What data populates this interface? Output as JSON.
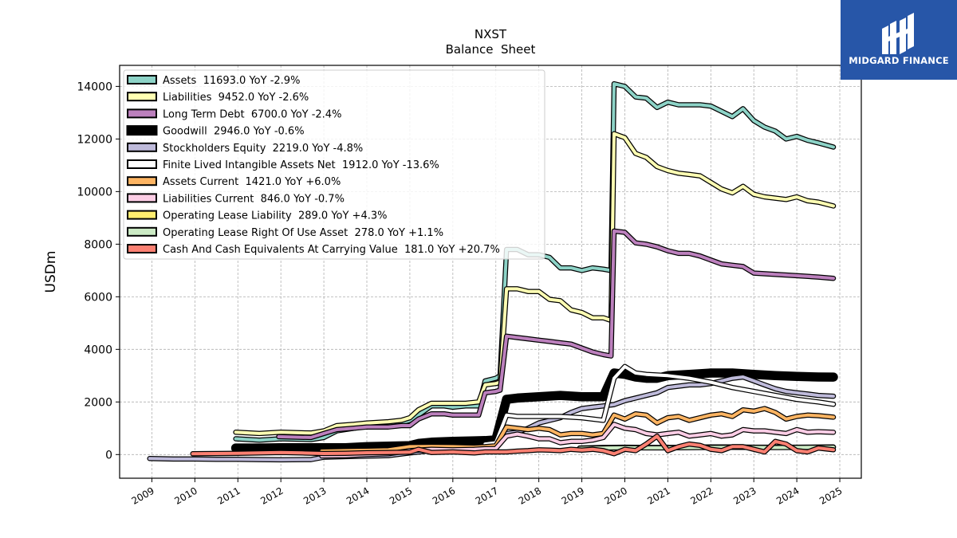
{
  "chart_data": {
    "type": "line",
    "title": "NXST",
    "subtitle": "Balance  Sheet",
    "ylabel": "USDm",
    "xlabel": "",
    "ylim": [
      -900,
      14800
    ],
    "xlim": [
      2008.25,
      2025.5
    ],
    "yticks": [
      0,
      2000,
      4000,
      6000,
      8000,
      10000,
      12000,
      14000
    ],
    "xticks": [
      2009,
      2010,
      2011,
      2012,
      2013,
      2014,
      2015,
      2016,
      2017,
      2018,
      2019,
      2020,
      2021,
      2022,
      2023,
      2024,
      2025
    ],
    "grid": true,
    "legend_position": "top-left",
    "series": [
      {
        "name": "Assets",
        "legend": "Assets  11693.0 YoY -2.9%",
        "color": "#8dd3c7",
        "width": 4,
        "x": [
          2010.95,
          2011.5,
          2012.0,
          2012.7,
          2013.0,
          2013.3,
          2013.7,
          2014.0,
          2014.5,
          2014.8,
          2015.0,
          2015.2,
          2015.5,
          2015.8,
          2016.0,
          2016.3,
          2016.6,
          2016.75,
          2017.0,
          2017.1,
          2017.25,
          2017.5,
          2017.75,
          2018.0,
          2018.25,
          2018.5,
          2018.75,
          2019.0,
          2019.25,
          2019.5,
          2019.68,
          2019.75,
          2020.0,
          2020.25,
          2020.5,
          2020.75,
          2021.0,
          2021.25,
          2021.5,
          2021.75,
          2022.0,
          2022.25,
          2022.5,
          2022.75,
          2023.0,
          2023.25,
          2023.5,
          2023.75,
          2024.0,
          2024.25,
          2024.5,
          2024.85
        ],
        "values": [
          600,
          550,
          600,
          570,
          650,
          900,
          1000,
          1100,
          1150,
          1200,
          1300,
          1500,
          1850,
          1850,
          1800,
          1850,
          1850,
          2800,
          2900,
          3000,
          7800,
          7800,
          7600,
          7600,
          7500,
          7100,
          7100,
          7000,
          7100,
          7050,
          7000,
          14100,
          14000,
          13600,
          13550,
          13200,
          13400,
          13300,
          13300,
          13300,
          13250,
          13050,
          12850,
          13150,
          12700,
          12450,
          12300,
          12000,
          12100,
          11950,
          11850,
          11693
        ]
      },
      {
        "name": "Liabilities",
        "legend": "Liabilities  9452.0 YoY -2.6%",
        "color": "#ffffb3",
        "width": 4,
        "x": [
          2010.95,
          2011.5,
          2012.0,
          2012.7,
          2013.0,
          2013.3,
          2013.7,
          2014.0,
          2014.5,
          2014.8,
          2015.0,
          2015.2,
          2015.5,
          2015.8,
          2016.0,
          2016.3,
          2016.6,
          2016.75,
          2017.0,
          2017.1,
          2017.25,
          2017.5,
          2017.75,
          2018.0,
          2018.25,
          2018.5,
          2018.75,
          2019.0,
          2019.25,
          2019.5,
          2019.68,
          2019.75,
          2020.0,
          2020.25,
          2020.5,
          2020.75,
          2021.0,
          2021.25,
          2021.5,
          2021.75,
          2022.0,
          2022.25,
          2022.5,
          2022.75,
          2023.0,
          2023.25,
          2023.5,
          2023.75,
          2024.0,
          2024.25,
          2024.5,
          2024.85
        ],
        "values": [
          850,
          800,
          850,
          820,
          900,
          1100,
          1150,
          1200,
          1250,
          1300,
          1400,
          1700,
          1950,
          1950,
          1950,
          1950,
          2000,
          2650,
          2700,
          2750,
          6300,
          6300,
          6200,
          6200,
          5900,
          5850,
          5500,
          5400,
          5200,
          5200,
          5100,
          12200,
          12050,
          11450,
          11300,
          10950,
          10800,
          10700,
          10650,
          10600,
          10350,
          10100,
          9950,
          10200,
          9900,
          9800,
          9750,
          9700,
          9800,
          9650,
          9600,
          9452
        ]
      },
      {
        "name": "Long Term Debt",
        "legend": "Long Term Debt  6700.0 YoY -2.4%",
        "color": "#bc80bd",
        "width": 4,
        "x": [
          2011.95,
          2012.7,
          2013.0,
          2013.3,
          2013.7,
          2014.0,
          2014.5,
          2014.8,
          2015.0,
          2015.2,
          2015.5,
          2015.8,
          2016.0,
          2016.3,
          2016.6,
          2016.75,
          2017.0,
          2017.1,
          2017.25,
          2017.5,
          2017.75,
          2018.0,
          2018.25,
          2018.5,
          2018.75,
          2019.0,
          2019.25,
          2019.5,
          2019.68,
          2019.75,
          2020.0,
          2020.25,
          2020.5,
          2020.75,
          2021.0,
          2021.25,
          2021.5,
          2021.75,
          2022.0,
          2022.25,
          2022.5,
          2022.75,
          2023.0,
          2023.5,
          2024.0,
          2024.5,
          2024.85
        ],
        "values": [
          680,
          650,
          800,
          950,
          1000,
          1050,
          1050,
          1100,
          1100,
          1350,
          1550,
          1550,
          1500,
          1500,
          1500,
          2350,
          2400,
          2450,
          4500,
          4450,
          4400,
          4350,
          4300,
          4250,
          4200,
          4050,
          3900,
          3800,
          3750,
          8500,
          8450,
          8050,
          8000,
          7900,
          7750,
          7650,
          7650,
          7550,
          7400,
          7250,
          7200,
          7150,
          6900,
          6850,
          6800,
          6750,
          6700
        ]
      },
      {
        "name": "Goodwill",
        "legend": "Goodwill  2946.0 YoY -0.6%",
        "color": "#000000",
        "width": 9,
        "x": [
          2010.95,
          2011.5,
          2012.0,
          2012.7,
          2013.0,
          2013.5,
          2014.0,
          2014.5,
          2015.0,
          2015.2,
          2015.5,
          2016.0,
          2016.5,
          2016.75,
          2017.0,
          2017.25,
          2017.5,
          2018.0,
          2018.5,
          2019.0,
          2019.5,
          2019.75,
          2020.0,
          2020.25,
          2020.5,
          2020.75,
          2021.0,
          2021.5,
          2022.0,
          2022.5,
          2023.0,
          2023.5,
          2024.0,
          2024.5,
          2024.85
        ],
        "values": [
          250,
          250,
          260,
          260,
          260,
          260,
          300,
          320,
          340,
          420,
          470,
          500,
          520,
          530,
          560,
          2100,
          2150,
          2200,
          2250,
          2200,
          2200,
          3100,
          3050,
          2950,
          2900,
          2900,
          3000,
          3050,
          3100,
          3100,
          3050,
          3000,
          2970,
          2950,
          2946
        ]
      },
      {
        "name": "Stockholders Equity",
        "legend": "Stockholders Equity  2219.0 YoY -4.8%",
        "color": "#bebada",
        "width": 4,
        "x": [
          2008.95,
          2009.5,
          2010.0,
          2010.5,
          2011.0,
          2011.5,
          2012.0,
          2012.7,
          2013.0,
          2013.5,
          2014.0,
          2014.5,
          2015.0,
          2015.5,
          2016.0,
          2016.5,
          2016.75,
          2017.0,
          2017.25,
          2017.5,
          2017.75,
          2018.0,
          2018.25,
          2018.5,
          2018.75,
          2019.0,
          2019.25,
          2019.5,
          2019.75,
          2020.0,
          2020.25,
          2020.5,
          2020.75,
          2021.0,
          2021.25,
          2021.5,
          2021.75,
          2022.0,
          2022.25,
          2022.5,
          2022.75,
          2023.0,
          2023.25,
          2023.5,
          2023.75,
          2024.0,
          2024.25,
          2024.5,
          2024.85
        ],
        "values": [
          -150,
          -170,
          -170,
          -180,
          -180,
          -190,
          -200,
          -190,
          -100,
          -80,
          -60,
          -40,
          60,
          150,
          200,
          250,
          270,
          300,
          800,
          850,
          1000,
          1200,
          1300,
          1400,
          1600,
          1750,
          1800,
          1850,
          1900,
          2050,
          2150,
          2250,
          2350,
          2550,
          2600,
          2650,
          2650,
          2700,
          2800,
          2900,
          2950,
          2800,
          2650,
          2500,
          2400,
          2350,
          2300,
          2250,
          2219
        ]
      },
      {
        "name": "Finite Lived Intangible Assets Net",
        "legend": "Finite Lived Intangible Assets Net  1912.0 YoY -13.6%",
        "color": "#ffffff",
        "width": 4,
        "x": [
          2016.75,
          2017.0,
          2017.25,
          2017.5,
          2017.75,
          2018.0,
          2018.5,
          2019.0,
          2019.5,
          2019.75,
          2020.0,
          2020.25,
          2020.5,
          2021.0,
          2021.5,
          2022.0,
          2022.5,
          2023.0,
          2023.5,
          2024.0,
          2024.5,
          2024.85
        ],
        "values": [
          400,
          450,
          1500,
          1450,
          1450,
          1450,
          1450,
          1400,
          1300,
          2900,
          3350,
          3100,
          3050,
          3000,
          2900,
          2750,
          2550,
          2400,
          2250,
          2100,
          2000,
          1912
        ]
      },
      {
        "name": "Assets Current",
        "legend": "Assets Current  1421.0 YoY +6.0%",
        "color": "#fdb462",
        "width": 4,
        "x": [
          2012.95,
          2013.5,
          2014.0,
          2014.5,
          2015.0,
          2015.5,
          2016.0,
          2016.5,
          2016.75,
          2017.0,
          2017.25,
          2017.5,
          2017.75,
          2018.0,
          2018.25,
          2018.5,
          2018.75,
          2019.0,
          2019.25,
          2019.5,
          2019.75,
          2020.0,
          2020.25,
          2020.5,
          2020.75,
          2021.0,
          2021.25,
          2021.5,
          2021.75,
          2022.0,
          2022.25,
          2022.5,
          2022.75,
          2023.0,
          2023.25,
          2023.5,
          2023.75,
          2024.0,
          2024.25,
          2024.5,
          2024.85
        ],
        "values": [
          130,
          150,
          160,
          180,
          300,
          310,
          300,
          280,
          300,
          330,
          1050,
          1000,
          950,
          1000,
          950,
          750,
          800,
          800,
          750,
          800,
          1500,
          1350,
          1550,
          1500,
          1200,
          1400,
          1450,
          1300,
          1400,
          1500,
          1550,
          1450,
          1700,
          1650,
          1750,
          1600,
          1350,
          1450,
          1500,
          1480,
          1421
        ]
      },
      {
        "name": "Liabilities Current",
        "legend": "Liabilities Current  846.0 YoY -0.7%",
        "color": "#fccde5",
        "width": 4,
        "x": [
          2012.95,
          2013.5,
          2014.0,
          2014.5,
          2015.0,
          2015.5,
          2016.0,
          2016.5,
          2016.75,
          2017.0,
          2017.25,
          2017.5,
          2017.75,
          2018.0,
          2018.25,
          2018.5,
          2018.75,
          2019.0,
          2019.25,
          2019.5,
          2019.75,
          2020.0,
          2020.25,
          2020.5,
          2020.75,
          2021.0,
          2021.25,
          2021.5,
          2021.75,
          2022.0,
          2022.25,
          2022.5,
          2022.75,
          2023.0,
          2023.25,
          2023.5,
          2023.75,
          2024.0,
          2024.25,
          2024.5,
          2024.85
        ],
        "values": [
          -50,
          -40,
          0,
          30,
          150,
          200,
          180,
          200,
          220,
          230,
          700,
          780,
          700,
          600,
          600,
          450,
          500,
          500,
          550,
          650,
          1150,
          1000,
          950,
          800,
          750,
          800,
          850,
          700,
          750,
          800,
          700,
          750,
          950,
          900,
          900,
          850,
          800,
          950,
          850,
          870,
          846
        ]
      },
      {
        "name": "Operating Lease Liability",
        "legend": "Operating Lease Liability  289.0 YoY +4.3%",
        "color": "#ffed6f",
        "width": 4,
        "x": [
          2018.95,
          2019.5,
          2020.0,
          2020.5,
          2021.0,
          2021.5,
          2022.0,
          2022.5,
          2023.0,
          2023.5,
          2024.0,
          2024.5,
          2024.85
        ],
        "values": [
          250,
          270,
          280,
          270,
          270,
          280,
          290,
          290,
          280,
          280,
          280,
          285,
          289
        ]
      },
      {
        "name": "Operating Lease Right Of Use Asset",
        "legend": "Operating Lease Right Of Use Asset  278.0 YoY +1.1%",
        "color": "#ccebc5",
        "width": 4,
        "x": [
          2018.95,
          2019.5,
          2020.0,
          2020.5,
          2021.0,
          2021.5,
          2022.0,
          2022.5,
          2023.0,
          2023.5,
          2024.0,
          2024.5,
          2024.85
        ],
        "values": [
          240,
          250,
          260,
          255,
          255,
          265,
          270,
          275,
          270,
          268,
          270,
          275,
          278
        ]
      },
      {
        "name": "Cash And Cash Equivalents At Carrying Value",
        "legend": "Cash And Cash Equivalents At Carrying Value  181.0 YoY +20.7%",
        "color": "#fb8072",
        "width": 4,
        "x": [
          2009.95,
          2010.5,
          2011.0,
          2011.5,
          2012.0,
          2012.5,
          2013.0,
          2013.5,
          2014.0,
          2014.5,
          2015.0,
          2015.2,
          2015.5,
          2016.0,
          2016.5,
          2016.75,
          2017.0,
          2017.25,
          2017.5,
          2017.75,
          2018.0,
          2018.25,
          2018.5,
          2018.75,
          2019.0,
          2019.25,
          2019.5,
          2019.75,
          2020.0,
          2020.25,
          2020.5,
          2020.75,
          2021.0,
          2021.25,
          2021.5,
          2021.75,
          2022.0,
          2022.25,
          2022.5,
          2022.75,
          2023.0,
          2023.25,
          2023.5,
          2023.75,
          2024.0,
          2024.25,
          2024.5,
          2024.85
        ],
        "values": [
          30,
          40,
          50,
          60,
          80,
          60,
          40,
          50,
          70,
          80,
          90,
          200,
          80,
          100,
          60,
          100,
          100,
          100,
          130,
          150,
          180,
          170,
          150,
          200,
          170,
          200,
          150,
          30,
          200,
          150,
          400,
          700,
          150,
          300,
          400,
          350,
          200,
          150,
          300,
          300,
          200,
          100,
          500,
          400,
          150,
          100,
          250,
          181
        ]
      }
    ]
  },
  "branding": {
    "logo_text": "MIDGARD FINANCE",
    "logo_bg": "#2756a8"
  }
}
